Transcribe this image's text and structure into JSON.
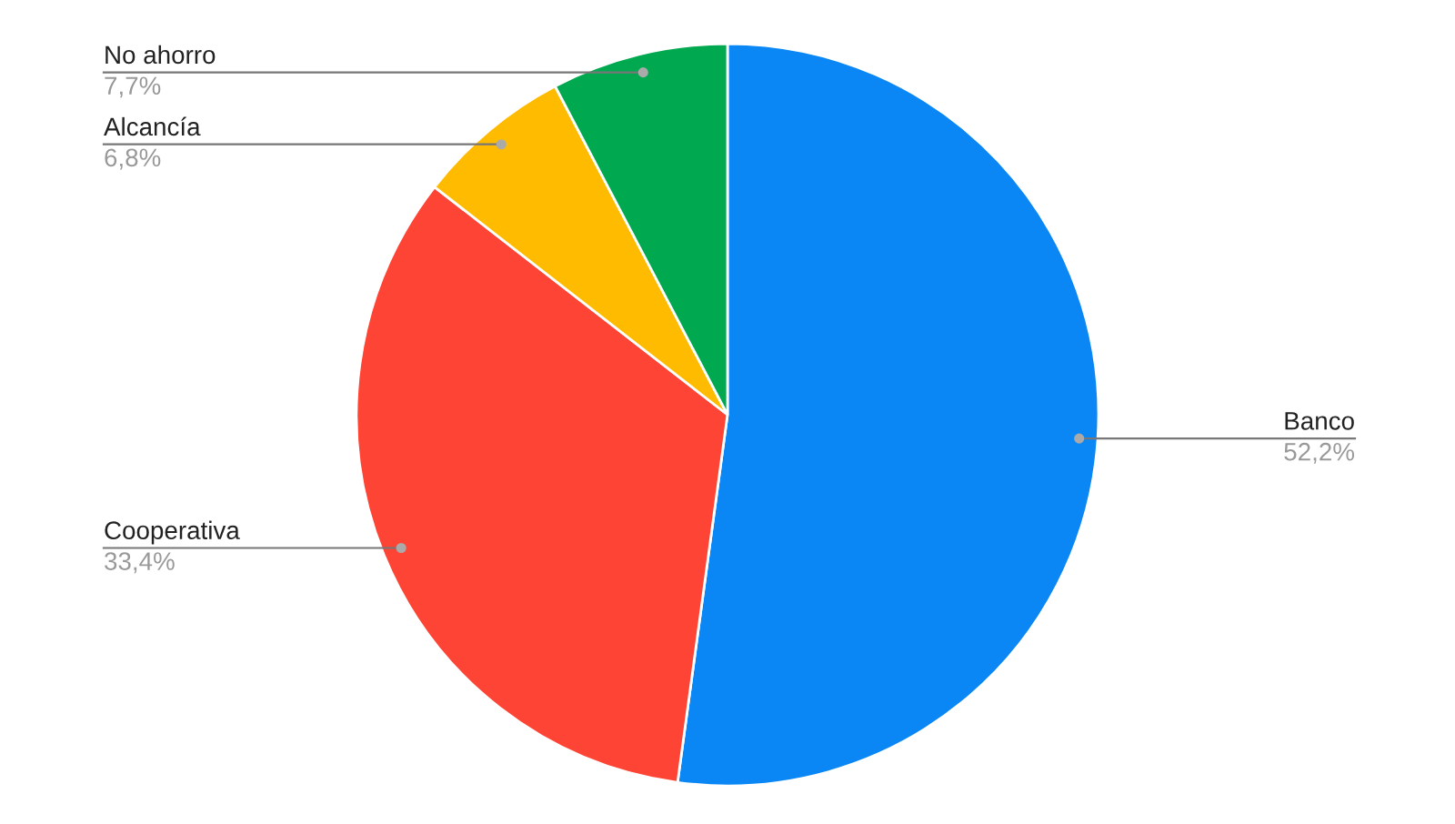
{
  "chart_data": {
    "type": "pie",
    "categories": [
      "Banco",
      "Cooperativa",
      "Alcancía",
      "No ahorro"
    ],
    "values": [
      52.2,
      33.4,
      6.8,
      7.7
    ],
    "value_labels": [
      "52,2%",
      "33,4%",
      "6,8%",
      "7,7%"
    ],
    "colors": [
      "#0a87f5",
      "#fe4535",
      "#ffbb00",
      "#00a84f"
    ],
    "legend": false
  }
}
